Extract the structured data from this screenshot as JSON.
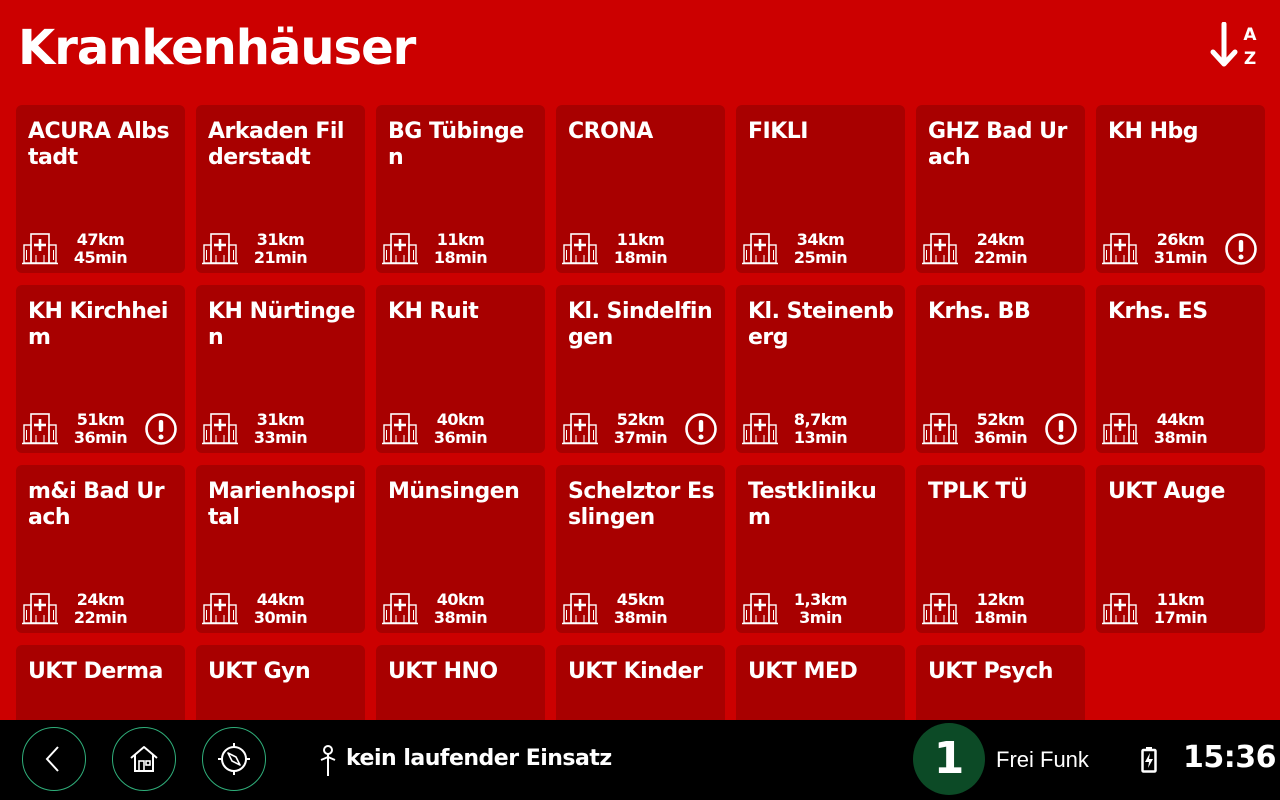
{
  "header": {
    "title": "Krankenhäuser",
    "sort_icon": "sort-alpha-down-icon",
    "sort_letters": [
      "A",
      "Z"
    ]
  },
  "tiles": [
    {
      "name": "ACURA Albstadt",
      "km": "47km",
      "min": "45min",
      "warning": false
    },
    {
      "name": "Arkaden Filderstadt",
      "km": "31km",
      "min": "21min",
      "warning": false
    },
    {
      "name": "BG Tübingen",
      "km": "11km",
      "min": "18min",
      "warning": false
    },
    {
      "name": "CRONA",
      "km": "11km",
      "min": "18min",
      "warning": false
    },
    {
      "name": "FIKLI",
      "km": "34km",
      "min": "25min",
      "warning": false
    },
    {
      "name": "GHZ Bad Urach",
      "km": "24km",
      "min": "22min",
      "warning": false
    },
    {
      "name": "KH Hbg",
      "km": "26km",
      "min": "31min",
      "warning": true
    },
    {
      "name": "KH Kirchheim",
      "km": "51km",
      "min": "36min",
      "warning": true
    },
    {
      "name": "KH Nürtingen",
      "km": "31km",
      "min": "33min",
      "warning": false
    },
    {
      "name": "KH Ruit",
      "km": "40km",
      "min": "36min",
      "warning": false
    },
    {
      "name": "Kl. Sindelfingen",
      "km": "52km",
      "min": "37min",
      "warning": true
    },
    {
      "name": "Kl. Steinenberg",
      "km": "8,7km",
      "min": "13min",
      "warning": false
    },
    {
      "name": "Krhs. BB",
      "km": "52km",
      "min": "36min",
      "warning": true
    },
    {
      "name": "Krhs. ES",
      "km": "44km",
      "min": "38min",
      "warning": false
    },
    {
      "name": "m&i Bad Urach",
      "km": "24km",
      "min": "22min",
      "warning": false
    },
    {
      "name": "Marienhospital",
      "km": "44km",
      "min": "30min",
      "warning": false
    },
    {
      "name": "Münsingen",
      "km": "40km",
      "min": "38min",
      "warning": false
    },
    {
      "name": "Schelztor Esslingen",
      "km": "45km",
      "min": "38min",
      "warning": false
    },
    {
      "name": "Testklinikum",
      "km": "1,3km",
      "min": "3min",
      "warning": false
    },
    {
      "name": "TPLK TÜ",
      "km": "12km",
      "min": "18min",
      "warning": false
    },
    {
      "name": "UKT Auge",
      "km": "11km",
      "min": "17min",
      "warning": false
    },
    {
      "name": "UKT Derma",
      "km": "",
      "min": "",
      "warning": false
    },
    {
      "name": "UKT Gyn",
      "km": "",
      "min": "",
      "warning": false
    },
    {
      "name": "UKT HNO",
      "km": "",
      "min": "",
      "warning": false
    },
    {
      "name": "UKT Kinder",
      "km": "",
      "min": "",
      "warning": false
    },
    {
      "name": "UKT MED",
      "km": "",
      "min": "",
      "warning": false
    },
    {
      "name": "UKT Psych",
      "km": "",
      "min": "",
      "warning": false
    }
  ],
  "footer": {
    "nav": [
      {
        "name": "back-button",
        "icon": "chevron-left-icon"
      },
      {
        "name": "home-button",
        "icon": "home-icon"
      },
      {
        "name": "navigation-button",
        "icon": "compass-icon"
      }
    ],
    "mission_icon": "person-pin-icon",
    "mission_text": "kein laufender Einsatz",
    "channel_number": "1",
    "channel_label": "Frei Funk",
    "battery_icon": "battery-charging-icon",
    "clock": "15:36"
  },
  "colors": {
    "background": "#cc0000",
    "tile": "#a80000",
    "footer": "#000000",
    "nav_ring": "#2fae7a",
    "channel": "#0c4a26"
  }
}
